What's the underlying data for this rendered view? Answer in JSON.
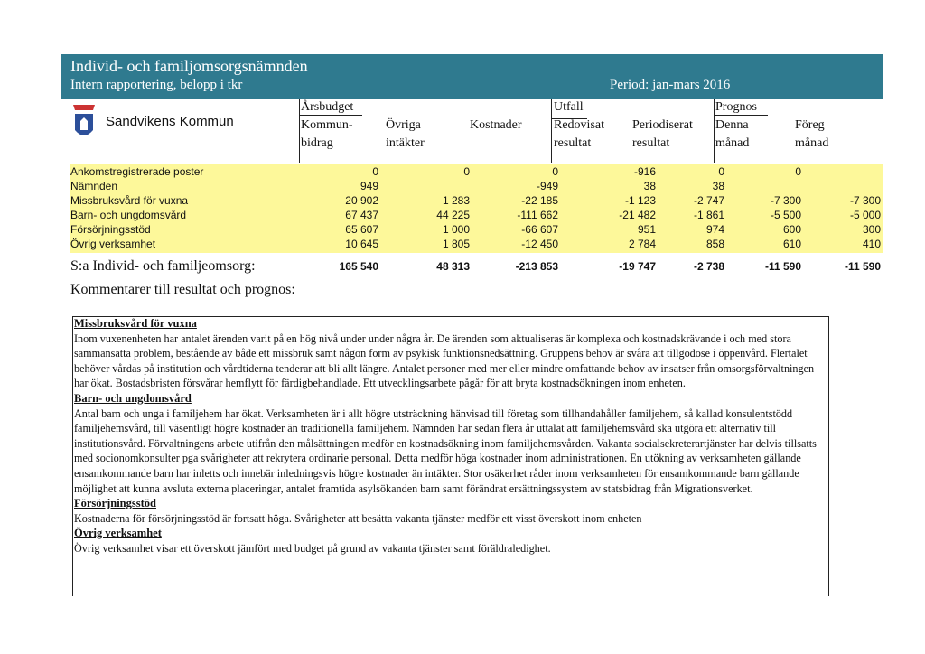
{
  "header": {
    "title": "Individ- och familjomsorgsnämnden",
    "subtitle": "Intern rapportering, belopp i tkr",
    "period": "Period: jan-mars 2016"
  },
  "logo": {
    "name": "Sandvikens Kommun"
  },
  "table": {
    "groups": [
      "Årsbudget",
      "Utfall",
      "Prognos"
    ],
    "columns": [
      [
        "Kommun-",
        "bidrag"
      ],
      [
        "Övriga",
        "intäkter"
      ],
      [
        "Kostnader"
      ],
      [
        "Redovisat",
        "resultat"
      ],
      [
        "Periodiserat",
        "resultat"
      ],
      [
        "Denna",
        "månad"
      ],
      [
        "Föreg",
        "månad"
      ]
    ],
    "rows": [
      {
        "label": "Ankomstregistrerade poster",
        "cells": [
          "0",
          "0",
          "0",
          "-916",
          "0",
          "0",
          null
        ]
      },
      {
        "label": "Nämnden",
        "cells": [
          "949",
          null,
          "-949",
          "38",
          "38",
          null,
          null
        ]
      },
      {
        "label": "Missbruksvård för vuxna",
        "cells": [
          "20 902",
          "1 283",
          "-22 185",
          "-1 123",
          "-2 747",
          "-7 300",
          "-7 300"
        ]
      },
      {
        "label": "Barn- och ungdomsvård",
        "cells": [
          "67 437",
          "44 225",
          "-111 662",
          "-21 482",
          "-1 861",
          "-5 500",
          "-5 000"
        ]
      },
      {
        "label": "Försörjningsstöd",
        "cells": [
          "65 607",
          "1 000",
          "-66 607",
          "951",
          "974",
          "600",
          "300"
        ]
      },
      {
        "label": "Övrig verksamhet",
        "cells": [
          "10 645",
          "1 805",
          "-12 450",
          "2 784",
          "858",
          "610",
          "410"
        ]
      }
    ],
    "total": {
      "label": "S:a Individ- och familjeomsorg:",
      "cells": [
        "165 540",
        "48 313",
        "-213 853",
        "-19 747",
        "-2 738",
        "-11 590",
        "-11 590"
      ]
    }
  },
  "comments": {
    "title": "Kommentarer till resultat och prognos:",
    "sections": [
      {
        "heading": "Missbruksvård för vuxna",
        "text": "Inom vuxenenheten har antalet ärenden varit på en hög nivå under under några år. De ärenden som aktualiseras är komplexa och kostnadskrävande i och med stora sammansatta problem, bestående av både ett missbruk samt någon form av psykisk funktionsnedsättning. Gruppens behov är svåra att tillgodose i öppenvård. Flertalet behöver vårdas på institution och vårdtiderna tenderar att bli allt längre. Antalet personer med mer eller mindre omfattande behov av insatser från omsorgsförvaltningen har ökat. Bostadsbristen försvårar hemflytt för färdigbehandlade. Ett utvecklingsarbete pågår för att bryta kostnadsökningen inom enheten."
      },
      {
        "heading": "Barn- och ungdomsvård",
        "text": "Antal barn och unga i familjehem har ökat. Verksamheten är i allt högre utsträckning hänvisad till företag som tillhandahåller familjehem, så kallad konsulentstödd familjehemsvård, till väsentligt högre kostnader än traditionella familjehem. Nämnden har sedan flera år uttalat att familjehemsvård ska utgöra ett alternativ till institutionsvård. Förvaltningens arbete utifrån den målsättningen medför en kostnadsökning inom familjehemsvården. Vakanta socialsekreterartjänster har delvis tillsatts med socionomkonsulter pga svårigheter att rekrytera ordinarie personal. Detta medför höga kostnader inom administrationen. En utökning av verksamheten gällande ensamkommande barn har inletts och innebär inledningsvis högre kostnader än intäkter. Stor osäkerhet råder inom verksamheten för ensamkommande barn gällande möjlighet att kunna avsluta externa placeringar, antalet framtida asylsökanden barn samt förändrat ersättningssystem av statsbidrag från Migrationsverket."
      },
      {
        "heading": "Försörjningsstöd",
        "text": "Kostnaderna för försörjningsstöd är fortsatt höga. Svårigheter att besätta vakanta tjänster medför ett visst överskott inom enheten"
      },
      {
        "heading": "Övrig verksamhet",
        "text": "Övrig verksamhet visar ett överskott jämfört med budget på grund av vakanta tjänster samt föräldraledighet."
      }
    ]
  }
}
